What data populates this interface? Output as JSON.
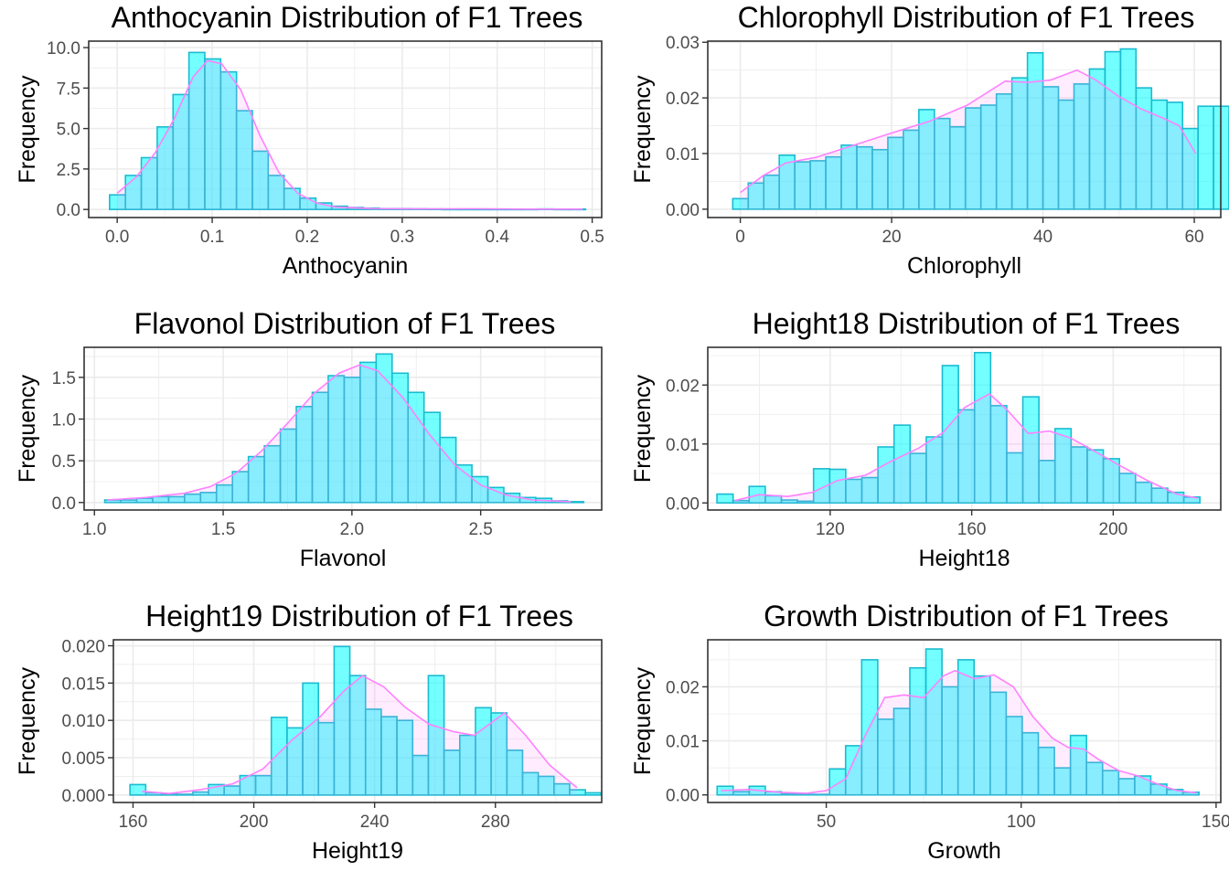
{
  "figure": {
    "caption": ""
  },
  "colors": {
    "bar_fill": "#00FFFF",
    "bar_outline": "#1BBBD0",
    "density_fill": "#FF88FF",
    "density_line": "#FF80FF",
    "panel_border": "#333333",
    "grid": "#EBEBEB",
    "tick_text": "#4D4D4D"
  },
  "chart_data": [
    {
      "id": "anthocyanin",
      "type": "histogram",
      "title": "Anthocyanin Distribution of F1 Trees",
      "xlabel": "Anthocyanin",
      "ylabel": "Frequency",
      "xlim": [
        -0.03,
        0.51
      ],
      "ylim": [
        -0.5,
        10.4
      ],
      "xticks": [
        0.0,
        0.1,
        0.2,
        0.3,
        0.4,
        0.5
      ],
      "xtick_labels": [
        "0.0",
        "0.1",
        "0.2",
        "0.3",
        "0.4",
        "0.5"
      ],
      "yticks": [
        0,
        2.5,
        5,
        7.5,
        10
      ],
      "ytick_labels": [
        "0.0",
        "2.5",
        "5.0",
        "7.5",
        "10.0"
      ],
      "bin_start": -0.008,
      "bin_width": 0.0167,
      "counts": [
        0.9,
        2.1,
        3.2,
        5.1,
        7.1,
        9.7,
        9.3,
        8.5,
        6.1,
        3.6,
        2.1,
        1.3,
        0.7,
        0.4,
        0.2,
        0.12,
        0.08,
        0.05,
        0.05,
        0.04,
        0.03,
        0.02,
        0.02,
        0.02,
        0.02,
        0.02,
        0.02,
        0.03,
        0.02,
        0.02
      ],
      "density": [
        [
          0.0,
          1.0
        ],
        [
          0.02,
          2.0
        ],
        [
          0.04,
          3.5
        ],
        [
          0.06,
          5.6
        ],
        [
          0.08,
          8.2
        ],
        [
          0.095,
          9.2
        ],
        [
          0.11,
          9.0
        ],
        [
          0.13,
          7.4
        ],
        [
          0.15,
          4.6
        ],
        [
          0.17,
          2.3
        ],
        [
          0.19,
          1.0
        ],
        [
          0.21,
          0.4
        ],
        [
          0.23,
          0.15
        ],
        [
          0.27,
          0.05
        ],
        [
          0.33,
          0.03
        ],
        [
          0.38,
          0.04
        ],
        [
          0.43,
          0.02
        ],
        [
          0.49,
          0.02
        ]
      ]
    },
    {
      "id": "chlorophyll",
      "type": "histogram",
      "title": "Chlorophyll Distribution of F1 Trees",
      "xlabel": "Chlorophyll",
      "ylabel": "Frequency",
      "xlim": [
        -4.3,
        63.5
      ],
      "ylim": [
        -0.0015,
        0.0302
      ],
      "xticks": [
        0,
        20,
        40,
        60
      ],
      "xtick_labels": [
        "0",
        "20",
        "40",
        "60"
      ],
      "yticks": [
        0,
        0.01,
        0.02,
        0.03
      ],
      "ytick_labels": [
        "0.00",
        "0.01",
        "0.02",
        "0.03"
      ],
      "bin_start": -1.0,
      "bin_width": 2.05,
      "counts": [
        0.0019,
        0.0047,
        0.0061,
        0.0097,
        0.0085,
        0.0087,
        0.0094,
        0.0115,
        0.0112,
        0.0107,
        0.0129,
        0.0142,
        0.0179,
        0.0163,
        0.0148,
        0.0182,
        0.0187,
        0.0207,
        0.0236,
        0.0281,
        0.022,
        0.0196,
        0.0225,
        0.0252,
        0.0283,
        0.0288,
        0.0218,
        0.0196,
        0.0192,
        0.0145,
        0.0185,
        0.0185,
        0.0168,
        0.0157
      ],
      "density": [
        [
          0,
          0.003
        ],
        [
          3,
          0.006
        ],
        [
          6,
          0.0083
        ],
        [
          10,
          0.0093
        ],
        [
          15,
          0.0115
        ],
        [
          20,
          0.0137
        ],
        [
          25,
          0.0158
        ],
        [
          30,
          0.0187
        ],
        [
          35,
          0.023
        ],
        [
          38,
          0.0228
        ],
        [
          41,
          0.0232
        ],
        [
          44.5,
          0.025
        ],
        [
          47,
          0.0232
        ],
        [
          50,
          0.0203
        ],
        [
          53,
          0.018
        ],
        [
          56,
          0.0163
        ],
        [
          58,
          0.015
        ],
        [
          60.2,
          0.01
        ]
      ]
    },
    {
      "id": "flavonol",
      "type": "histogram",
      "title": "Flavonol Distribution of F1 Trees",
      "xlabel": "Flavonol",
      "ylabel": "Frequency",
      "xlim": [
        0.96,
        2.97
      ],
      "ylim": [
        -0.09,
        1.86
      ],
      "xticks": [
        1.0,
        1.5,
        2.0,
        2.5
      ],
      "xtick_labels": [
        "1.0",
        "1.5",
        "2.0",
        "2.5"
      ],
      "yticks": [
        0,
        0.5,
        1.0,
        1.5
      ],
      "ytick_labels": [
        "0.0",
        "0.5",
        "1.0",
        "1.5"
      ],
      "bin_start": 1.04,
      "bin_width": 0.062,
      "counts": [
        0.03,
        0.03,
        0.05,
        0.07,
        0.07,
        0.1,
        0.12,
        0.21,
        0.37,
        0.55,
        0.68,
        0.88,
        1.15,
        1.32,
        1.52,
        1.5,
        1.68,
        1.78,
        1.55,
        1.32,
        1.08,
        0.78,
        0.45,
        0.31,
        0.18,
        0.11,
        0.06,
        0.05,
        0.02,
        0.01
      ],
      "density": [
        [
          1.05,
          0.03
        ],
        [
          1.2,
          0.06
        ],
        [
          1.35,
          0.11
        ],
        [
          1.45,
          0.19
        ],
        [
          1.55,
          0.35
        ],
        [
          1.65,
          0.62
        ],
        [
          1.75,
          0.95
        ],
        [
          1.85,
          1.3
        ],
        [
          1.95,
          1.55
        ],
        [
          2.03,
          1.65
        ],
        [
          2.1,
          1.58
        ],
        [
          2.2,
          1.25
        ],
        [
          2.3,
          0.82
        ],
        [
          2.4,
          0.45
        ],
        [
          2.5,
          0.21
        ],
        [
          2.6,
          0.09
        ],
        [
          2.7,
          0.03
        ],
        [
          2.85,
          0.01
        ]
      ]
    },
    {
      "id": "height18",
      "type": "histogram",
      "title": "Height18 Distribution of F1 Trees",
      "xlabel": "Height18",
      "ylabel": "Frequency",
      "xlim": [
        85.4,
        230.4
      ],
      "ylim": [
        -0.0012,
        0.0264
      ],
      "xticks": [
        120,
        160,
        200
      ],
      "xtick_labels": [
        "120",
        "160",
        "200"
      ],
      "yticks": [
        0,
        0.01,
        0.02
      ],
      "ytick_labels": [
        "0.00",
        "0.01",
        "0.02"
      ],
      "bin_start": 88.0,
      "bin_width": 4.55,
      "counts": [
        0.0015,
        0.0004,
        0.0028,
        0.0012,
        0.0005,
        0.0003,
        0.0058,
        0.0057,
        0.004,
        0.0043,
        0.0095,
        0.0132,
        0.0084,
        0.0112,
        0.0233,
        0.0158,
        0.0255,
        0.0165,
        0.0085,
        0.018,
        0.0072,
        0.0126,
        0.0095,
        0.009,
        0.0075,
        0.005,
        0.0035,
        0.0025,
        0.0018,
        0.001
      ],
      "density": [
        [
          93,
          0.0004
        ],
        [
          100,
          0.0014
        ],
        [
          108,
          0.0011
        ],
        [
          115,
          0.0018
        ],
        [
          122,
          0.0038
        ],
        [
          130,
          0.0047
        ],
        [
          137,
          0.007
        ],
        [
          145,
          0.0093
        ],
        [
          152,
          0.012
        ],
        [
          158,
          0.0162
        ],
        [
          165,
          0.0185
        ],
        [
          170,
          0.0158
        ],
        [
          176,
          0.0118
        ],
        [
          182,
          0.0122
        ],
        [
          188,
          0.011
        ],
        [
          195,
          0.0087
        ],
        [
          202,
          0.0063
        ],
        [
          210,
          0.0037
        ],
        [
          218,
          0.0015
        ],
        [
          224,
          0.0008
        ]
      ]
    },
    {
      "id": "height19",
      "type": "histogram",
      "title": "Height19 Distribution of F1 Trees",
      "xlabel": "Height19",
      "ylabel": "Frequency",
      "xlim": [
        153.5,
        315.2
      ],
      "ylim": [
        -0.001,
        0.0208
      ],
      "xticks": [
        160,
        200,
        240,
        280
      ],
      "xtick_labels": [
        "160",
        "200",
        "240",
        "280"
      ],
      "yticks": [
        0,
        0.005,
        0.01,
        0.015,
        0.02
      ],
      "ytick_labels": [
        "0.000",
        "0.005",
        "0.010",
        "0.015",
        "0.020"
      ],
      "bin_start": 159.0,
      "bin_width": 5.2,
      "counts": [
        0.0014,
        0.0003,
        0.0002,
        0.0001,
        0.0004,
        0.0014,
        0.0012,
        0.0026,
        0.0026,
        0.0104,
        0.009,
        0.015,
        0.0097,
        0.0199,
        0.016,
        0.0115,
        0.0105,
        0.01,
        0.0053,
        0.016,
        0.006,
        0.008,
        0.0117,
        0.011,
        0.006,
        0.003,
        0.0025,
        0.0015,
        0.0007,
        0.0003
      ],
      "density": [
        [
          163,
          0.0005
        ],
        [
          172,
          0.0002
        ],
        [
          182,
          0.0007
        ],
        [
          193,
          0.0015
        ],
        [
          203,
          0.0035
        ],
        [
          213,
          0.0075
        ],
        [
          222,
          0.0105
        ],
        [
          230,
          0.014
        ],
        [
          236,
          0.016
        ],
        [
          243,
          0.0145
        ],
        [
          250,
          0.0118
        ],
        [
          258,
          0.0095
        ],
        [
          266,
          0.0085
        ],
        [
          273,
          0.008
        ],
        [
          278,
          0.0095
        ],
        [
          283,
          0.011
        ],
        [
          290,
          0.008
        ],
        [
          298,
          0.004
        ],
        [
          307,
          0.001
        ]
      ]
    },
    {
      "id": "growth",
      "type": "histogram",
      "title": "Growth Distribution of F1 Trees",
      "xlabel": "Growth",
      "ylabel": "Frequency",
      "xlim": [
        19.6,
        151.2
      ],
      "ylim": [
        -0.0014,
        0.0287
      ],
      "xticks": [
        50,
        100,
        150
      ],
      "xtick_labels": [
        "50",
        "100",
        "150"
      ],
      "yticks": [
        0,
        0.01,
        0.02
      ],
      "ytick_labels": [
        "0.00",
        "0.01",
        "0.02"
      ],
      "bin_start": 22.0,
      "bin_width": 4.12,
      "counts": [
        0.0016,
        0.0006,
        0.0016,
        0.0006,
        0.0002,
        0.0001,
        0.0001,
        0.0048,
        0.0091,
        0.025,
        0.014,
        0.016,
        0.0235,
        0.027,
        0.02,
        0.025,
        0.022,
        0.019,
        0.0145,
        0.0115,
        0.0088,
        0.005,
        0.011,
        0.006,
        0.0045,
        0.003,
        0.0035,
        0.002,
        0.001,
        0.0005
      ],
      "density": [
        [
          23,
          0.0008
        ],
        [
          30,
          0.001
        ],
        [
          38,
          0.0005
        ],
        [
          45,
          0.0003
        ],
        [
          50,
          0.0008
        ],
        [
          55,
          0.003
        ],
        [
          60,
          0.011
        ],
        [
          65,
          0.018
        ],
        [
          70,
          0.0185
        ],
        [
          75,
          0.018
        ],
        [
          80,
          0.022
        ],
        [
          83,
          0.023
        ],
        [
          88,
          0.0215
        ],
        [
          93,
          0.0222
        ],
        [
          98,
          0.02
        ],
        [
          103,
          0.0145
        ],
        [
          108,
          0.0105
        ],
        [
          112,
          0.0088
        ],
        [
          116,
          0.0085
        ],
        [
          120,
          0.0065
        ],
        [
          125,
          0.0045
        ],
        [
          130,
          0.0035
        ],
        [
          135,
          0.002
        ],
        [
          140,
          0.0008
        ],
        [
          145,
          0.0004
        ]
      ]
    }
  ]
}
